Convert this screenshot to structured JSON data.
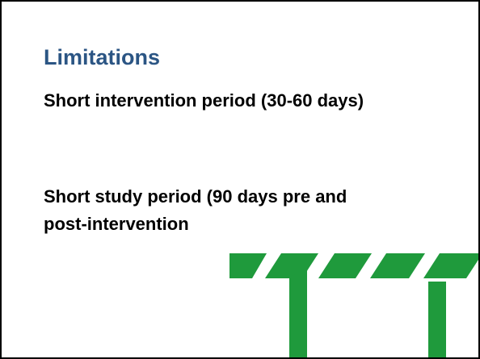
{
  "slide": {
    "title": "Limitations",
    "bullets": [
      "Short intervention period (30-60 days)",
      "Short study period (90 days pre and post-intervention"
    ]
  }
}
